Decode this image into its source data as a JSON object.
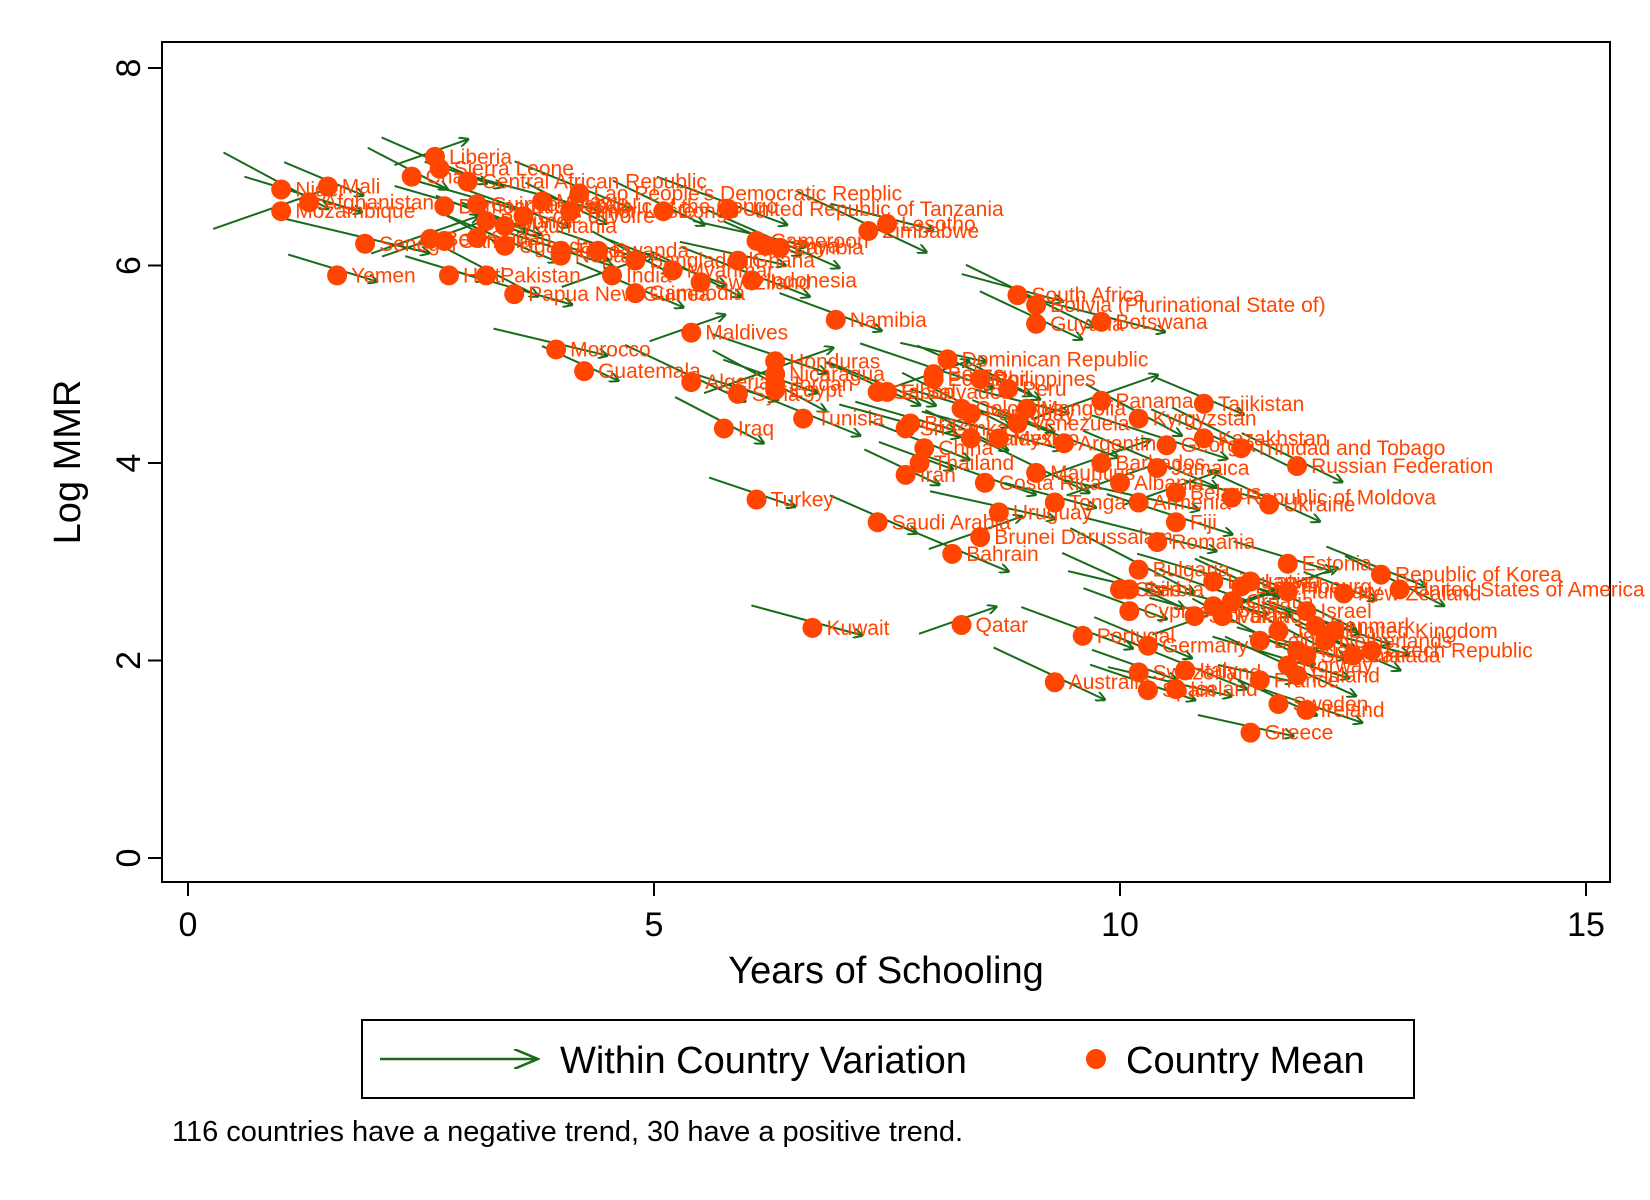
{
  "chart_data": {
    "type": "scatter",
    "xlabel": "Years of Schooling",
    "ylabel": "Log MMR",
    "xlim": [
      0,
      15
    ],
    "ylim": [
      0,
      8
    ],
    "xticks": [
      "0",
      "5",
      "10",
      "15"
    ],
    "yticks": [
      "0",
      "2",
      "4",
      "6",
      "8"
    ],
    "grid": false,
    "legend": {
      "placement": "bottom",
      "entries": [
        "Within Country Variation",
        "Country Mean"
      ]
    },
    "note": "116 countries have a negative trend, 30 have a positive trend.",
    "colors": {
      "arrow": "#1a6b1a",
      "point": "#ff4500",
      "label": "#ff4500"
    },
    "points": [
      {
        "label": "Liberia",
        "x": 2.65,
        "y": 7.1
      },
      {
        "label": "Sierra Leone",
        "x": 2.7,
        "y": 6.98
      },
      {
        "label": "Central African Republic",
        "x": 3.0,
        "y": 6.85
      },
      {
        "label": "Niger",
        "x": 1.0,
        "y": 6.77
      },
      {
        "label": "Mali",
        "x": 1.5,
        "y": 6.8
      },
      {
        "label": "Afghanistan",
        "x": 1.3,
        "y": 6.64
      },
      {
        "label": "Chad",
        "x": 2.4,
        "y": 6.9
      },
      {
        "label": "Lao People's Democratic Repblic",
        "x": 4.2,
        "y": 6.73
      },
      {
        "label": "Democratic Republic of the Congo",
        "x": 2.75,
        "y": 6.6
      },
      {
        "label": "Mozambique",
        "x": 1.0,
        "y": 6.55
      },
      {
        "label": "Burundi",
        "x": 3.2,
        "y": 6.45
      },
      {
        "label": "Malawi",
        "x": 3.8,
        "y": 6.65
      },
      {
        "label": "Congo",
        "x": 5.1,
        "y": 6.55
      },
      {
        "label": "United Republic of Tanzania",
        "x": 5.8,
        "y": 6.57
      },
      {
        "label": "Lesotho",
        "x": 7.5,
        "y": 6.42
      },
      {
        "label": "Zimbabwe",
        "x": 7.3,
        "y": 6.35
      },
      {
        "label": "Cote d'Ivoire",
        "x": 3.6,
        "y": 6.5
      },
      {
        "label": "Senegal",
        "x": 1.9,
        "y": 6.22
      },
      {
        "label": "Benin",
        "x": 2.6,
        "y": 6.27
      },
      {
        "label": "Rwanda",
        "x": 4.4,
        "y": 6.15
      },
      {
        "label": "Cameroon",
        "x": 6.1,
        "y": 6.25
      },
      {
        "label": "Kenya",
        "x": 6.2,
        "y": 6.2
      },
      {
        "label": "Nepal",
        "x": 4.0,
        "y": 6.1
      },
      {
        "label": "Bangladesh",
        "x": 4.8,
        "y": 6.05
      },
      {
        "label": "Uganda",
        "x": 3.4,
        "y": 6.2
      },
      {
        "label": "Yemen",
        "x": 1.6,
        "y": 5.9
      },
      {
        "label": "Pakistan",
        "x": 3.2,
        "y": 5.9
      },
      {
        "label": "India",
        "x": 4.55,
        "y": 5.9
      },
      {
        "label": "Papua New Guinea",
        "x": 3.5,
        "y": 5.71
      },
      {
        "label": "Swaziland",
        "x": 5.5,
        "y": 5.83
      },
      {
        "label": "Indonesia",
        "x": 6.05,
        "y": 5.85
      },
      {
        "label": "South Africa",
        "x": 8.9,
        "y": 5.7
      },
      {
        "label": "Bolivia (Plurinational State of)",
        "x": 9.1,
        "y": 5.6
      },
      {
        "label": "Namibia",
        "x": 6.95,
        "y": 5.45
      },
      {
        "label": "Botswana",
        "x": 9.8,
        "y": 5.43
      },
      {
        "label": "Guyana",
        "x": 9.1,
        "y": 5.41
      },
      {
        "label": "Maldives",
        "x": 5.4,
        "y": 5.32
      },
      {
        "label": "Morocco",
        "x": 3.95,
        "y": 5.15
      },
      {
        "label": "Guatemala",
        "x": 4.25,
        "y": 4.93
      },
      {
        "label": "Honduras",
        "x": 6.3,
        "y": 5.03
      },
      {
        "label": "Dominican Republic",
        "x": 8.15,
        "y": 5.05
      },
      {
        "label": "Philippines",
        "x": 8.5,
        "y": 4.85
      },
      {
        "label": "Syria",
        "x": 5.9,
        "y": 4.7
      },
      {
        "label": "Egypt",
        "x": 6.3,
        "y": 4.74
      },
      {
        "label": "Tajikistan",
        "x": 10.9,
        "y": 4.6
      },
      {
        "label": "Panama",
        "x": 9.8,
        "y": 4.63
      },
      {
        "label": "Iraq",
        "x": 5.75,
        "y": 4.35
      },
      {
        "label": "Tunisia",
        "x": 6.6,
        "y": 4.45
      },
      {
        "label": "Brazil",
        "x": 7.75,
        "y": 4.4
      },
      {
        "label": "Trinidad and Tobago",
        "x": 11.3,
        "y": 4.15
      },
      {
        "label": "China",
        "x": 7.9,
        "y": 4.15
      },
      {
        "label": "Mexico",
        "x": 8.7,
        "y": 4.25
      },
      {
        "label": "Russian Federation",
        "x": 11.9,
        "y": 3.97
      },
      {
        "label": "Thailand",
        "x": 7.85,
        "y": 4.0
      },
      {
        "label": "Barbados",
        "x": 9.8,
        "y": 4.0
      },
      {
        "label": "Iran",
        "x": 7.7,
        "y": 3.88
      },
      {
        "label": "Costa Rica",
        "x": 8.55,
        "y": 3.8
      },
      {
        "label": "Republic of Moldova",
        "x": 11.2,
        "y": 3.65
      },
      {
        "label": "Ukraine",
        "x": 11.6,
        "y": 3.58
      },
      {
        "label": "Turkey",
        "x": 6.1,
        "y": 3.63
      },
      {
        "label": "Uruguay",
        "x": 8.7,
        "y": 3.5
      },
      {
        "label": "Saudi Arabia",
        "x": 7.4,
        "y": 3.4
      },
      {
        "label": "Fiji",
        "x": 10.6,
        "y": 3.4
      },
      {
        "label": "Brunei Darussalam",
        "x": 8.5,
        "y": 3.25
      },
      {
        "label": "Bahrain",
        "x": 8.2,
        "y": 3.08
      },
      {
        "label": "Estonia",
        "x": 11.8,
        "y": 2.98
      },
      {
        "label": "Bulgaria",
        "x": 10.2,
        "y": 2.92
      },
      {
        "label": "Republic of Korea",
        "x": 12.8,
        "y": 2.87
      },
      {
        "label": "Lithuania",
        "x": 11.0,
        "y": 2.8
      },
      {
        "label": "United States of America",
        "x": 13.0,
        "y": 2.72
      },
      {
        "label": "New Zealand",
        "x": 12.4,
        "y": 2.68
      },
      {
        "label": "Kuwait",
        "x": 6.7,
        "y": 2.33
      },
      {
        "label": "Qatar",
        "x": 8.3,
        "y": 2.36
      },
      {
        "label": "Portugal",
        "x": 9.6,
        "y": 2.25
      },
      {
        "label": "Czech Republic",
        "x": 12.7,
        "y": 2.1
      },
      {
        "label": "Australia",
        "x": 9.3,
        "y": 1.78
      },
      {
        "label": "Switzerland",
        "x": 10.2,
        "y": 1.88
      },
      {
        "label": "Iceland",
        "x": 10.6,
        "y": 1.71
      },
      {
        "label": "Sweden",
        "x": 11.7,
        "y": 1.56
      },
      {
        "label": "Ireland",
        "x": 12.0,
        "y": 1.5
      },
      {
        "label": "Greece",
        "x": 11.4,
        "y": 1.27
      },
      {
        "label": "Poland",
        "x": 11.1,
        "y": 2.45
      },
      {
        "label": "Denmark",
        "x": 12.1,
        "y": 2.35
      },
      {
        "label": "Belgium",
        "x": 11.5,
        "y": 2.2
      },
      {
        "label": "Germany",
        "x": 10.3,
        "y": 2.15
      },
      {
        "label": "Norway",
        "x": 11.8,
        "y": 1.95
      },
      {
        "label": "Japan",
        "x": 11.7,
        "y": 2.3
      },
      {
        "label": "Italy",
        "x": 10.7,
        "y": 1.9
      },
      {
        "label": "Austria",
        "x": 11.9,
        "y": 2.1
      },
      {
        "label": "Netherlands",
        "x": 12.2,
        "y": 2.2
      },
      {
        "label": "Hungary",
        "x": 11.8,
        "y": 2.7
      },
      {
        "label": "Slovakia",
        "x": 10.8,
        "y": 2.45
      },
      {
        "label": "Israel",
        "x": 12.0,
        "y": 2.5
      },
      {
        "label": "Cyprus",
        "x": 10.1,
        "y": 2.5
      },
      {
        "label": "Malta",
        "x": 11.0,
        "y": 2.55
      },
      {
        "label": "Luxembourg",
        "x": 11.3,
        "y": 2.75
      },
      {
        "label": "United Kingdom",
        "x": 12.3,
        "y": 2.3
      },
      {
        "label": "Chile",
        "x": 10.0,
        "y": 2.72
      },
      {
        "label": "Serbia",
        "x": 10.1,
        "y": 2.72
      },
      {
        "label": "Belarus",
        "x": 10.6,
        "y": 3.7
      },
      {
        "label": "Armenia",
        "x": 10.2,
        "y": 3.6
      },
      {
        "label": "Kazakhstan",
        "x": 10.9,
        "y": 4.25
      },
      {
        "label": "Georgia",
        "x": 10.5,
        "y": 4.18
      },
      {
        "label": "Kyrgyzstan",
        "x": 10.2,
        "y": 4.45
      },
      {
        "label": "Jamaica",
        "x": 10.4,
        "y": 3.95
      },
      {
        "label": "Paraguay",
        "x": 8.4,
        "y": 4.5
      },
      {
        "label": "Peru",
        "x": 8.8,
        "y": 4.75
      },
      {
        "label": "El Salvador",
        "x": 7.5,
        "y": 4.72
      },
      {
        "label": "Ecuador",
        "x": 8.0,
        "y": 4.85
      },
      {
        "label": "Colombia",
        "x": 8.3,
        "y": 4.55
      },
      {
        "label": "Venezuela",
        "x": 8.9,
        "y": 4.4
      },
      {
        "label": "Sri Lanka",
        "x": 7.7,
        "y": 4.35
      },
      {
        "label": "Malaysia",
        "x": 8.4,
        "y": 4.25
      },
      {
        "label": "Argentina",
        "x": 9.4,
        "y": 4.2
      },
      {
        "label": "Mongolia",
        "x": 9.0,
        "y": 4.55
      },
      {
        "label": "Algeria",
        "x": 5.4,
        "y": 4.82
      },
      {
        "label": "Jordan",
        "x": 6.3,
        "y": 4.8
      },
      {
        "label": "Nicaragua",
        "x": 6.3,
        "y": 4.9
      },
      {
        "label": "Gabon",
        "x": 7.4,
        "y": 4.72
      },
      {
        "label": "Belize",
        "x": 8.0,
        "y": 4.9
      },
      {
        "label": "Ghana",
        "x": 5.9,
        "y": 6.05
      },
      {
        "label": "Zambia",
        "x": 6.35,
        "y": 6.18
      },
      {
        "label": "Togo",
        "x": 4.0,
        "y": 6.15
      },
      {
        "label": "Sudan",
        "x": 3.1,
        "y": 6.28
      },
      {
        "label": "Cambodia",
        "x": 4.8,
        "y": 5.72
      },
      {
        "label": "Haiti",
        "x": 2.8,
        "y": 5.9
      },
      {
        "label": "Gambia",
        "x": 2.75,
        "y": 6.25
      },
      {
        "label": "Mauritania",
        "x": 3.4,
        "y": 6.4
      },
      {
        "label": "Guinea-Bissau",
        "x": 3.1,
        "y": 6.62
      },
      {
        "label": "Timor-Leste",
        "x": 4.1,
        "y": 6.55
      },
      {
        "label": "Myanmar",
        "x": 5.2,
        "y": 5.95
      },
      {
        "label": "Tonga",
        "x": 9.3,
        "y": 3.6
      },
      {
        "label": "Mauritius",
        "x": 9.1,
        "y": 3.9
      },
      {
        "label": "Latvia",
        "x": 11.4,
        "y": 2.8
      },
      {
        "label": "Romania",
        "x": 10.4,
        "y": 3.2
      },
      {
        "label": "Albania",
        "x": 10.0,
        "y": 3.8
      },
      {
        "label": "Croatia",
        "x": 11.2,
        "y": 2.6
      },
      {
        "label": "Slovenia",
        "x": 12.0,
        "y": 2.05
      },
      {
        "label": "Finland",
        "x": 11.9,
        "y": 1.85
      },
      {
        "label": "Spain",
        "x": 10.3,
        "y": 1.7
      },
      {
        "label": "France",
        "x": 11.5,
        "y": 1.8
      },
      {
        "label": "Canada",
        "x": 12.5,
        "y": 2.05
      }
    ]
  }
}
